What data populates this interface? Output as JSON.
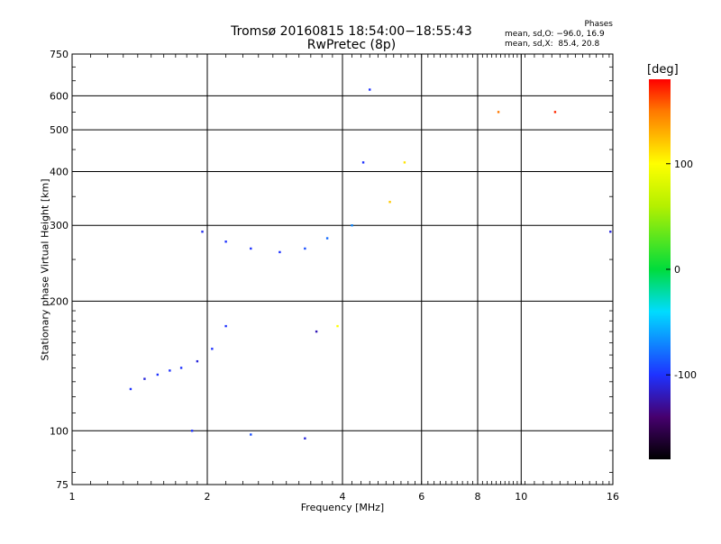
{
  "chart_data": {
    "type": "scatter",
    "title": "Tromsø 20160815 18:54:00−18:55:43",
    "subtitle": "RwPretec (8p)",
    "xlabel": "Frequency [MHz]",
    "ylabel": "Stationary phase Virtual Height [km]",
    "x_scale": "log",
    "y_scale": "log",
    "xlim": [
      1,
      16
    ],
    "ylim": [
      75,
      750
    ],
    "x_ticks": [
      1,
      2,
      4,
      6,
      8,
      10,
      16
    ],
    "y_ticks": [
      75,
      100,
      200,
      300,
      400,
      500,
      600,
      750
    ],
    "grid": true,
    "stats": {
      "heading": "Phases",
      "line1": "mean, sd,O: −96.0, 16.9",
      "line2": "mean, sd,X:  85.4, 20.8"
    },
    "colorbar": {
      "label": "[deg]",
      "range": [
        -180,
        180
      ],
      "ticks": [
        100,
        0,
        -100
      ]
    },
    "series": [
      {
        "type": "traces",
        "points": [
          {
            "x": 1.35,
            "y": 125,
            "c": -100
          },
          {
            "x": 1.45,
            "y": 132,
            "c": -110
          },
          {
            "x": 1.55,
            "y": 135,
            "c": -100
          },
          {
            "x": 1.65,
            "y": 138,
            "c": -100
          },
          {
            "x": 1.75,
            "y": 140,
            "c": -100
          },
          {
            "x": 1.9,
            "y": 145,
            "c": -110
          },
          {
            "x": 2.05,
            "y": 155,
            "c": -100
          },
          {
            "x": 2.2,
            "y": 175,
            "c": -100
          },
          {
            "x": 1.95,
            "y": 290,
            "c": -105
          },
          {
            "x": 2.2,
            "y": 275,
            "c": -100
          },
          {
            "x": 2.5,
            "y": 265,
            "c": -100
          },
          {
            "x": 2.9,
            "y": 260,
            "c": -100
          },
          {
            "x": 3.3,
            "y": 265,
            "c": -90
          },
          {
            "x": 3.7,
            "y": 280,
            "c": -80
          },
          {
            "x": 4.2,
            "y": 300,
            "c": -70
          },
          {
            "x": 4.45,
            "y": 420,
            "c": -100
          },
          {
            "x": 4.6,
            "y": 620,
            "c": -100
          },
          {
            "x": 5.1,
            "y": 340,
            "c": 120
          },
          {
            "x": 5.5,
            "y": 420,
            "c": 110
          },
          {
            "x": 3.5,
            "y": 170,
            "c": -120
          },
          {
            "x": 3.9,
            "y": 175,
            "c": 100
          },
          {
            "x": 1.85,
            "y": 100,
            "c": -100
          },
          {
            "x": 2.5,
            "y": 98,
            "c": -90
          },
          {
            "x": 3.3,
            "y": 96,
            "c": -110
          },
          {
            "x": 8.9,
            "y": 550,
            "c": 150
          },
          {
            "x": 11.9,
            "y": 550,
            "c": 170
          },
          {
            "x": 15.8,
            "y": 290,
            "c": -110
          }
        ]
      }
    ]
  }
}
